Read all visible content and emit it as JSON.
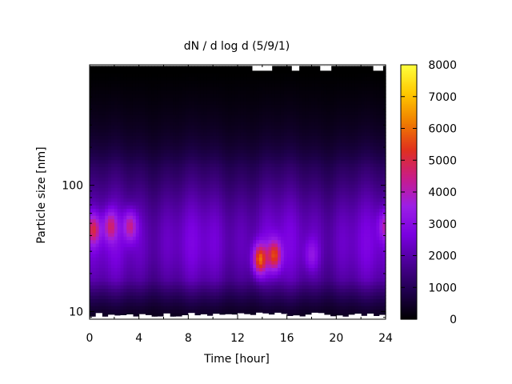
{
  "chart_data": {
    "type": "heatmap",
    "title": "dN / d log d (5/9/1)",
    "xlabel": "Time [hour]",
    "ylabel": "Particle size [nm]",
    "x_range": [
      0,
      24
    ],
    "x_ticks": [
      0,
      4,
      8,
      12,
      16,
      20,
      24
    ],
    "x_tick_labels": [
      "0",
      "4",
      "8",
      "12",
      "16",
      "20",
      "24"
    ],
    "y_scale": "log",
    "y_range": [
      8.7,
      900
    ],
    "y_ticks": [
      10,
      100
    ],
    "y_tick_labels": [
      "10",
      "100"
    ],
    "grid": false,
    "colorbar": {
      "range": [
        0,
        8000
      ],
      "ticks": [
        0,
        1000,
        2000,
        3000,
        4000,
        5000,
        6000,
        7000,
        8000
      ],
      "tick_labels": [
        "0",
        "1000",
        "2000",
        "3000",
        "4000",
        "5000",
        "6000",
        "7000",
        "8000"
      ],
      "palette": [
        "#000000",
        "#1f004d",
        "#4b0096",
        "#7a00e0",
        "#9b1ee6",
        "#c81c8a",
        "#e0301e",
        "#f07f00",
        "#ffc800",
        "#ffff3c"
      ]
    },
    "hotspots": [
      {
        "time_h": 0.3,
        "size_nm": 45,
        "value": 5000
      },
      {
        "time_h": 1.7,
        "size_nm": 48,
        "value": 4600
      },
      {
        "time_h": 3.3,
        "size_nm": 48,
        "value": 4700
      },
      {
        "time_h": 13.8,
        "size_nm": 26,
        "value": 6200
      },
      {
        "time_h": 15.0,
        "size_nm": 28,
        "value": 5600
      },
      {
        "time_h": 18.0,
        "size_nm": 28,
        "value": 3500
      },
      {
        "time_h": 24.0,
        "size_nm": 48,
        "value": 4200
      }
    ]
  }
}
